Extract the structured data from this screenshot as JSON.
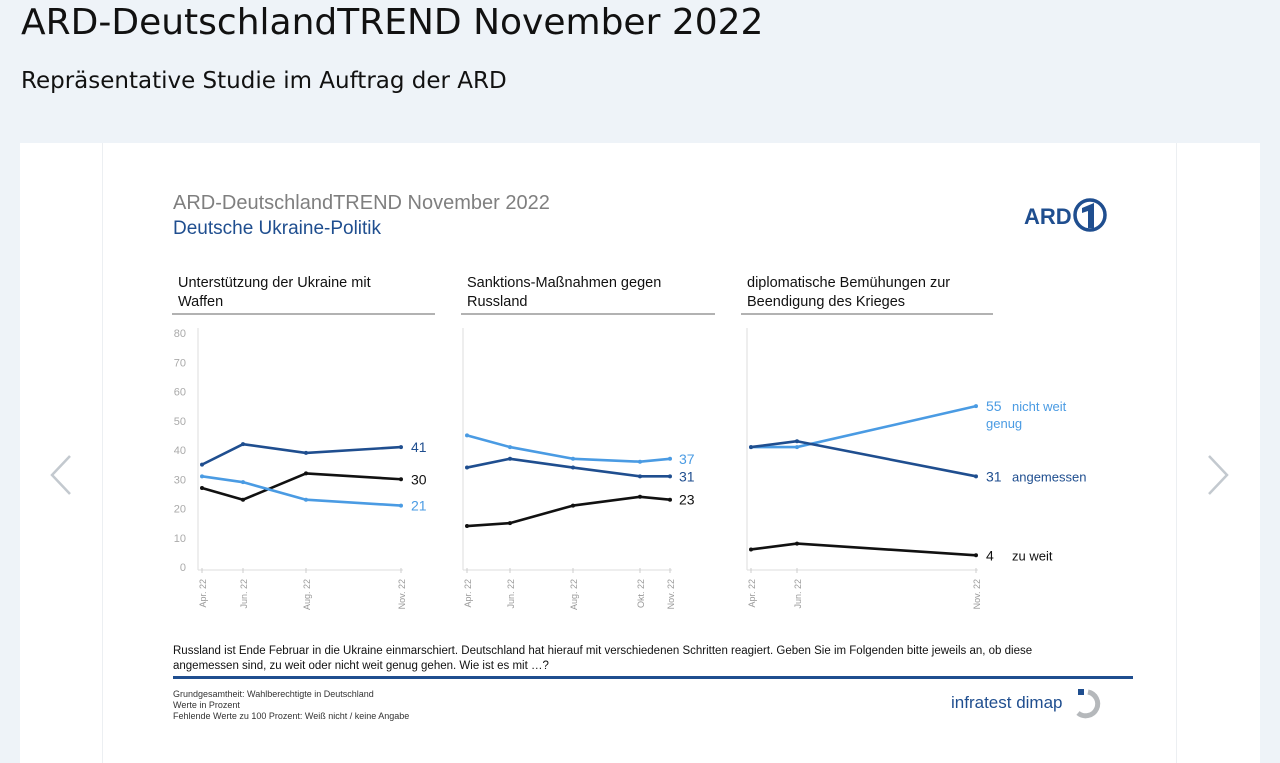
{
  "page": {
    "title": "ARD-DeutschlandTREND November 2022",
    "subtitle": "Repräsentative Studie im Auftrag der ARD"
  },
  "slide": {
    "title": "ARD-DeutschlandTREND November 2022",
    "subtitle": "Deutsche Ukraine-Politik",
    "logo": "ARD",
    "question": [
      "Russland ist Ende Februar in die Ukraine einmarschiert. Deutschland hat hierauf mit verschiedenen Schritten reagiert. Geben Sie im Folgenden bitte jeweils an, ob diese",
      "angemessen sind, zu weit oder nicht weit genug gehen. Wie ist es mit …?"
    ],
    "footnotes": [
      "Grundgesamtheit: Wahlberechtigte in Deutschland",
      "Werte in Prozent",
      "Fehlende Werte zu 100 Prozent: Weiß nicht / keine Angabe"
    ],
    "brand": "infratest dimap"
  },
  "nav": {
    "prev_icon": "chevron-left-icon",
    "next_icon": "chevron-right-icon"
  },
  "colors": {
    "nicht_weit_genug": "#4a9be3",
    "angemessen": "#1f4e8f",
    "zu_weit": "#111111",
    "rule": "#1f4e8f"
  },
  "chart_data": [
    {
      "type": "line",
      "title": [
        "Unterstützung der Ukraine mit",
        "Waffen"
      ],
      "categories": [
        "Apr. 22",
        "Jun. 22",
        "Aug. 22",
        "Nov. 22"
      ],
      "ylim": [
        0,
        80
      ],
      "yticks": [
        0,
        10,
        20,
        30,
        40,
        50,
        60,
        70,
        80
      ],
      "series": [
        {
          "key": "angemessen",
          "values": [
            35,
            42,
            39,
            41
          ],
          "end_label": "41"
        },
        {
          "key": "zu_weit",
          "values": [
            27,
            23,
            32,
            30
          ],
          "end_label": "30"
        },
        {
          "key": "nicht_weit_genug",
          "values": [
            31,
            29,
            23,
            21
          ],
          "end_label": "21"
        }
      ]
    },
    {
      "type": "line",
      "title": [
        "Sanktions-Maßnahmen gegen",
        "Russland"
      ],
      "categories": [
        "Apr. 22",
        "Jun. 22",
        "Aug. 22",
        "Okt. 22",
        "Nov. 22"
      ],
      "ylim": [
        0,
        80
      ],
      "series": [
        {
          "key": "nicht_weit_genug",
          "values": [
            45,
            41,
            37,
            36,
            37
          ],
          "end_label": "37"
        },
        {
          "key": "angemessen",
          "values": [
            34,
            37,
            34,
            31,
            31
          ],
          "end_label": "31"
        },
        {
          "key": "zu_weit",
          "values": [
            14,
            15,
            21,
            24,
            23
          ],
          "end_label": "23"
        }
      ]
    },
    {
      "type": "line",
      "title": [
        "diplomatische Bemühungen zur",
        "Beendigung des Krieges"
      ],
      "categories": [
        "Apr. 22",
        "Jun. 22",
        "Nov. 22"
      ],
      "ylim": [
        0,
        80
      ],
      "series": [
        {
          "key": "nicht_weit_genug",
          "name": [
            "nicht weit",
            "genug"
          ],
          "values": [
            41,
            41,
            55
          ],
          "end_label": "55"
        },
        {
          "key": "angemessen",
          "name": [
            "angemessen"
          ],
          "values": [
            41,
            43,
            31
          ],
          "end_label": "31"
        },
        {
          "key": "zu_weit",
          "name": [
            "zu weit"
          ],
          "values": [
            6,
            8,
            4
          ],
          "end_label": "4"
        }
      ]
    }
  ]
}
